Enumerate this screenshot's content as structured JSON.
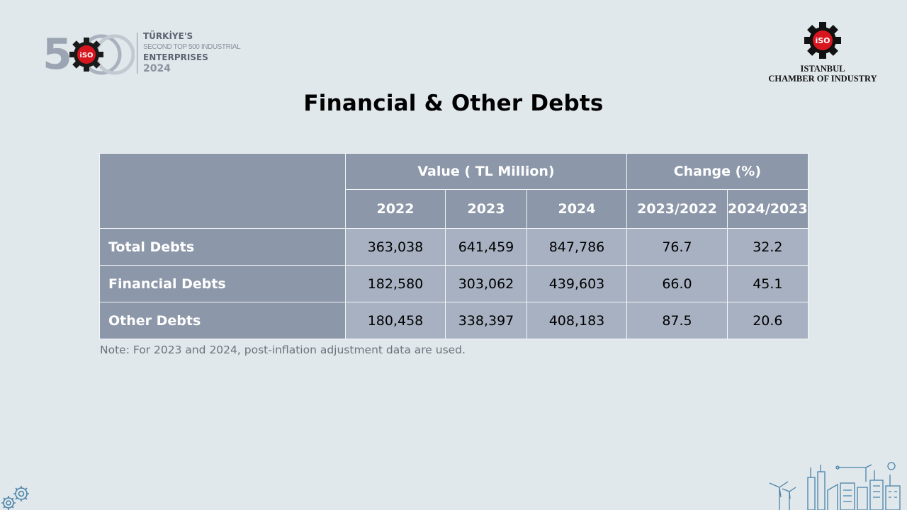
{
  "brand": {
    "logo500": {
      "digit": "5",
      "line1": "TÜRKİYE'S",
      "line2": "SECOND TOP 500 INDUSTRIAL",
      "line3": "ENTERPRISES",
      "line4": "2024",
      "badge_text": "iSO"
    },
    "iso": {
      "badge_text": "iSO",
      "org_line1": "ISTANBUL",
      "org_line2": "CHAMBER OF INDUSTRY"
    },
    "colors": {
      "badge_red": "#d7161f",
      "gear": "#1a1a1a",
      "header_fill": "#8c97a9",
      "cell_fill": "#a7b1c1"
    }
  },
  "title": "Financial & Other Debts",
  "table": {
    "group_headers": {
      "value": "Value ( TL Million)",
      "change": "Change (%)"
    },
    "columns": [
      "2022",
      "2023",
      "2024",
      "2023/2022",
      "2024/2023"
    ],
    "rows": [
      {
        "label": "Total Debts",
        "values": [
          "363,038",
          "641,459",
          "847,786",
          "76.7",
          "32.2"
        ]
      },
      {
        "label": "Financial Debts",
        "values": [
          "182,580",
          "303,062",
          "439,603",
          "66.0",
          "45.1"
        ]
      },
      {
        "label": "Other Debts",
        "values": [
          "180,458",
          "338,397",
          "408,183",
          "87.5",
          "20.6"
        ]
      }
    ]
  },
  "note": "Note: For 2023 and 2024, post-inflation adjustment data are used."
}
